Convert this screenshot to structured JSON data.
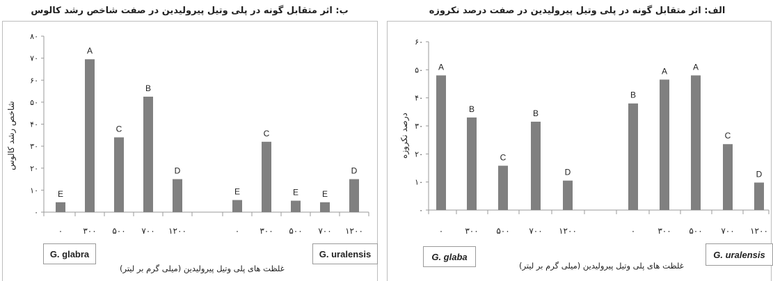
{
  "chart_data": [
    {
      "type": "bar",
      "title": "ب: اثر متقابل گونه در پلی وتیل پیرولیدین در صفت شاخص رشد کالوس",
      "ylabel": "شاخص رشد کالوس",
      "xlabel": "غلظت های پلی وتیل پیرولیدین (میلی گرم بر لیتر)",
      "ylim": [
        0,
        80
      ],
      "yticks": [
        "۰",
        "۱۰",
        "۲۰",
        "۳۰",
        "۴۰",
        "۵۰",
        "۶۰",
        "۷۰",
        "۸۰"
      ],
      "groups": [
        {
          "name": "G. glabra",
          "categories": [
            "۰",
            "۳۰۰",
            "۵۰۰",
            "۷۰۰",
            "۱۲۰۰"
          ],
          "values": [
            4.5,
            69.5,
            34,
            52.5,
            15
          ],
          "letters": [
            "E",
            "A",
            "C",
            "B",
            "D"
          ]
        },
        {
          "name": "G. uralensis",
          "categories": [
            "۰",
            "۳۰۰",
            "۵۰۰",
            "۷۰۰",
            "۱۲۰۰"
          ],
          "values": [
            5.5,
            32,
            5.2,
            4.5,
            15
          ],
          "letters": [
            "E",
            "C",
            "E",
            "E",
            "D"
          ]
        }
      ],
      "grid": false
    },
    {
      "type": "bar",
      "title": "الف: اثر متقابل گونه در پلی وتیل پیرولیدین در صفت درصد نکروزه",
      "ylabel": "درصد نکروزه",
      "xlabel": "غلظت های پلی وتیل پیرولیدین (میلی گرم بر لیتر)",
      "ylim": [
        0,
        60
      ],
      "yticks": [
        "۰",
        "۱۰",
        "۲۰",
        "۳۰",
        "۴۰",
        "۵۰",
        "۶۰"
      ],
      "groups": [
        {
          "name": "G. glaba",
          "categories": [
            "۰",
            "۳۰۰",
            "۵۰۰",
            "۷۰۰",
            "۱۲۰۰"
          ],
          "values": [
            48,
            33,
            15.8,
            31.5,
            10.5
          ],
          "letters": [
            "A",
            "B",
            "C",
            "B",
            "D"
          ]
        },
        {
          "name": "G. uralensis",
          "categories": [
            "۰",
            "۳۰۰",
            "۵۰۰",
            "۷۰۰",
            "۱۲۰۰"
          ],
          "values": [
            38,
            46.5,
            48,
            23.5,
            9.8
          ],
          "letters": [
            "B",
            "A",
            "A",
            "C",
            "D"
          ]
        }
      ],
      "grid": false
    }
  ],
  "colors": {
    "bar": "#808080",
    "axis": "#9a9a9a",
    "text": "#222222"
  }
}
